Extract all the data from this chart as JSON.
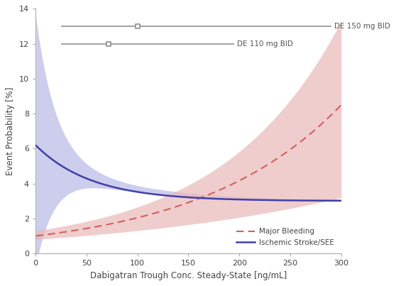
{
  "xlim": [
    0,
    300
  ],
  "ylim": [
    0,
    14
  ],
  "xlabel": "Dabigatran Trough Conc. Steady-State [ng/mL]",
  "ylabel": "Event Probability [%]",
  "xticks": [
    0,
    50,
    100,
    150,
    200,
    250,
    300
  ],
  "yticks": [
    0,
    2,
    4,
    6,
    8,
    10,
    12,
    14
  ],
  "bleeding_color": "#d45f5f",
  "stroke_color": "#4040a8",
  "bleeding_fill": "#ebb8b8",
  "stroke_fill": "#b8b8e8",
  "de150_y": 13.0,
  "de110_y": 12.0,
  "de150_x_start": 25,
  "de150_x_mid": 100,
  "de150_x_end": 290,
  "de110_x_start": 25,
  "de110_x_mid": 72,
  "de110_x_end": 195,
  "legend_bleeding": "Major Bleeding",
  "legend_stroke": "Ischemic Stroke/SEE",
  "legend_de150": "DE 150 mg BID",
  "legend_de110": "DE 110 mg BID",
  "bg_color": "#ffffff"
}
